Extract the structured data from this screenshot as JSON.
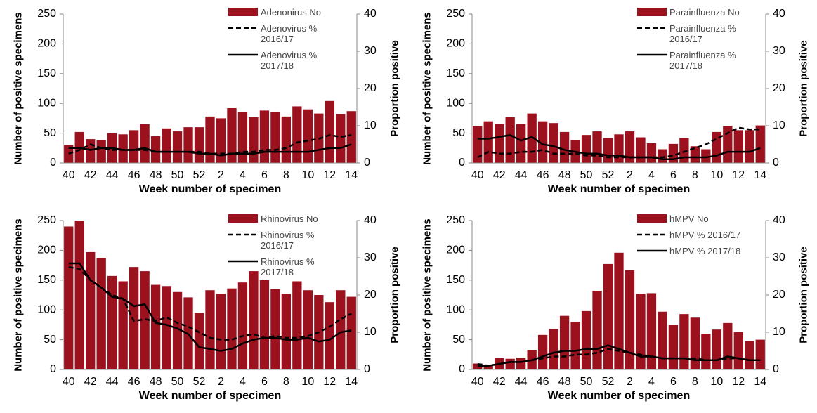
{
  "chart_data": [
    {
      "type": "combo",
      "ylabel": "Number of positive specimens",
      "y2label": "Proportion positive",
      "xlabel": "Week number of specimen",
      "categories": [
        "40",
        null,
        "42",
        null,
        "44",
        null,
        "46",
        null,
        "48",
        null,
        "50",
        null,
        "52",
        null,
        "2",
        null,
        "4",
        null,
        "6",
        null,
        "8",
        null,
        "10",
        null,
        "12",
        null,
        "14"
      ],
      "ylim": [
        0,
        250
      ],
      "yticks": [
        0,
        50,
        100,
        150,
        200,
        250
      ],
      "y2lim": [
        0,
        40
      ],
      "y2ticks": [
        0,
        10,
        20,
        30,
        40
      ],
      "series": [
        {
          "name": "Adenonirus  No",
          "type": "bar",
          "color": "#9b111e",
          "values": [
            30,
            52,
            40,
            38,
            50,
            48,
            55,
            65,
            45,
            58,
            53,
            60,
            60,
            78,
            75,
            92,
            85,
            77,
            88,
            85,
            78,
            95,
            90,
            83,
            104,
            82,
            87
          ]
        },
        {
          "name": "Adenovirus % 2016/17",
          "type": "line",
          "axis": "y2",
          "color": "#000000",
          "linestyle": "dashed",
          "values": [
            2.5,
            3.5,
            5,
            4,
            3.5,
            3.5,
            3.5,
            3.5,
            3,
            3,
            3,
            3,
            3,
            2.5,
            2.5,
            2.5,
            3,
            3,
            3.5,
            3.5,
            4,
            5.5,
            6,
            6.5,
            7.5,
            7,
            7.5
          ]
        },
        {
          "name": "Adenovirus % 2017/18",
          "type": "line",
          "axis": "y2",
          "color": "#000000",
          "linestyle": "solid",
          "values": [
            4,
            4,
            3.5,
            4,
            4,
            3.5,
            3.5,
            4,
            3,
            3,
            3,
            3,
            2.5,
            2.5,
            2,
            2.5,
            2.5,
            2.5,
            3,
            3,
            3,
            3,
            3,
            3.5,
            4,
            4,
            5
          ]
        }
      ]
    },
    {
      "type": "combo",
      "ylabel": "Number of positive specimens",
      "y2label": "Proportion positive",
      "xlabel": "Week number of specimen",
      "categories": [
        "40",
        null,
        "42",
        null,
        "44",
        null,
        "46",
        null,
        "48",
        null,
        "50",
        null,
        "52",
        null,
        "2",
        null,
        "4",
        null,
        "6",
        null,
        "8",
        null,
        "10",
        null,
        "12",
        null,
        "14"
      ],
      "ylim": [
        0,
        250
      ],
      "yticks": [
        0,
        50,
        100,
        150,
        200,
        250
      ],
      "y2lim": [
        0,
        40
      ],
      "y2ticks": [
        0,
        10,
        20,
        30,
        40
      ],
      "series": [
        {
          "name": "Parainfluenza No",
          "type": "bar",
          "color": "#9b111e",
          "values": [
            62,
            70,
            65,
            77,
            65,
            83,
            70,
            67,
            52,
            38,
            47,
            53,
            42,
            48,
            53,
            43,
            33,
            23,
            32,
            42,
            28,
            23,
            52,
            62,
            55,
            55,
            63
          ]
        },
        {
          "name": "Parainfluenza % 2016/17",
          "type": "line",
          "axis": "y2",
          "color": "#000000",
          "linestyle": "dashed",
          "values": [
            1.5,
            3,
            2.5,
            2.5,
            3,
            3,
            3.5,
            2.5,
            2.5,
            2.5,
            2,
            2,
            1.5,
            1.5,
            1.5,
            1.5,
            1.5,
            1.5,
            2,
            3,
            4,
            5,
            6.5,
            8,
            9.5,
            9,
            9
          ]
        },
        {
          "name": "Parainfluenza % 2017/18",
          "type": "line",
          "axis": "y2",
          "color": "#000000",
          "linestyle": "solid",
          "values": [
            6.5,
            6.5,
            7,
            7.5,
            6,
            7,
            5,
            4.5,
            3.5,
            3,
            2.5,
            2.5,
            2,
            2,
            1.5,
            1.5,
            1.5,
            1,
            1,
            1.5,
            1.5,
            1.5,
            2,
            3,
            3,
            3,
            4
          ]
        }
      ]
    },
    {
      "type": "combo",
      "ylabel": "Number of positive specimens",
      "y2label": "Proportion positive",
      "xlabel": "Week number of specimen",
      "categories": [
        "40",
        null,
        "42",
        null,
        "44",
        null,
        "46",
        null,
        "48",
        null,
        "50",
        null,
        "52",
        null,
        "2",
        null,
        "4",
        null,
        "6",
        null,
        "8",
        null,
        "10",
        null,
        "12",
        null,
        "14"
      ],
      "ylim": [
        0,
        250
      ],
      "yticks": [
        0,
        50,
        100,
        150,
        200,
        250
      ],
      "y2lim": [
        0,
        40
      ],
      "y2ticks": [
        0,
        10,
        20,
        30,
        40
      ],
      "series": [
        {
          "name": "Rhinovirus No",
          "type": "bar",
          "color": "#9b111e",
          "values": [
            240,
            250,
            197,
            187,
            157,
            148,
            172,
            165,
            142,
            140,
            130,
            121,
            95,
            133,
            127,
            136,
            146,
            165,
            150,
            135,
            127,
            148,
            133,
            125,
            113,
            133,
            122
          ]
        },
        {
          "name": "Rhinovirus % 2016/17",
          "type": "line",
          "axis": "y2",
          "color": "#000000",
          "linestyle": "dashed",
          "values": [
            27.5,
            27,
            24,
            22,
            20,
            19,
            13,
            13.5,
            13,
            14,
            12.5,
            11.5,
            10,
            8.5,
            8,
            8,
            9,
            9.5,
            8.5,
            9,
            8.5,
            8.5,
            9,
            10,
            11.5,
            13.5,
            15
          ]
        },
        {
          "name": "Rhinovirus % 2017/18",
          "type": "line",
          "axis": "y2",
          "color": "#000000",
          "linestyle": "solid",
          "values": [
            28.5,
            28.5,
            24,
            22,
            19.5,
            19,
            17,
            17.5,
            12.5,
            12,
            11,
            9.5,
            6,
            5.5,
            5,
            5.5,
            7,
            8,
            8.5,
            8.5,
            8,
            8,
            8.5,
            7.5,
            8,
            10,
            10.5
          ]
        }
      ]
    },
    {
      "type": "combo",
      "ylabel": "Number of positive specimens",
      "y2label": "Proportion positive",
      "xlabel": "Week number of specimen",
      "categories": [
        "40",
        null,
        "42",
        null,
        "44",
        null,
        "46",
        null,
        "48",
        null,
        "50",
        null,
        "52",
        null,
        "2",
        null,
        "4",
        null,
        "6",
        null,
        "8",
        null,
        "10",
        null,
        "12",
        null,
        "14"
      ],
      "ylim": [
        0,
        250
      ],
      "yticks": [
        0,
        50,
        100,
        150,
        200,
        250
      ],
      "y2lim": [
        0,
        40
      ],
      "y2ticks": [
        0,
        10,
        20,
        30,
        40
      ],
      "series": [
        {
          "name": "hMPV No",
          "type": "bar",
          "color": "#9b111e",
          "values": [
            10,
            8,
            19,
            18,
            20,
            33,
            58,
            68,
            90,
            80,
            98,
            132,
            177,
            196,
            167,
            127,
            128,
            97,
            75,
            93,
            87,
            60,
            67,
            78,
            63,
            48,
            50
          ]
        },
        {
          "name": "hMPV % 2016/17",
          "type": "line",
          "axis": "y2",
          "color": "#000000",
          "linestyle": "dashed",
          "values": [
            1.5,
            1,
            1.5,
            2,
            2,
            2.5,
            3,
            3.5,
            3.5,
            4,
            4,
            4.5,
            5.5,
            5,
            4.5,
            4,
            3.5,
            3,
            3,
            3,
            3,
            2.5,
            2.5,
            3,
            3,
            2.5,
            2.5
          ]
        },
        {
          "name": "hMPV % 2017/18",
          "type": "line",
          "axis": "y2",
          "color": "#000000",
          "linestyle": "solid",
          "values": [
            1,
            1,
            1.5,
            2,
            2,
            2.5,
            3.5,
            4.5,
            5,
            5,
            5.5,
            5.5,
            6.5,
            5.5,
            4.5,
            3.5,
            3.5,
            3,
            3,
            3,
            2.5,
            2.5,
            2.5,
            3.5,
            3,
            2.5,
            2.5
          ]
        }
      ]
    }
  ]
}
